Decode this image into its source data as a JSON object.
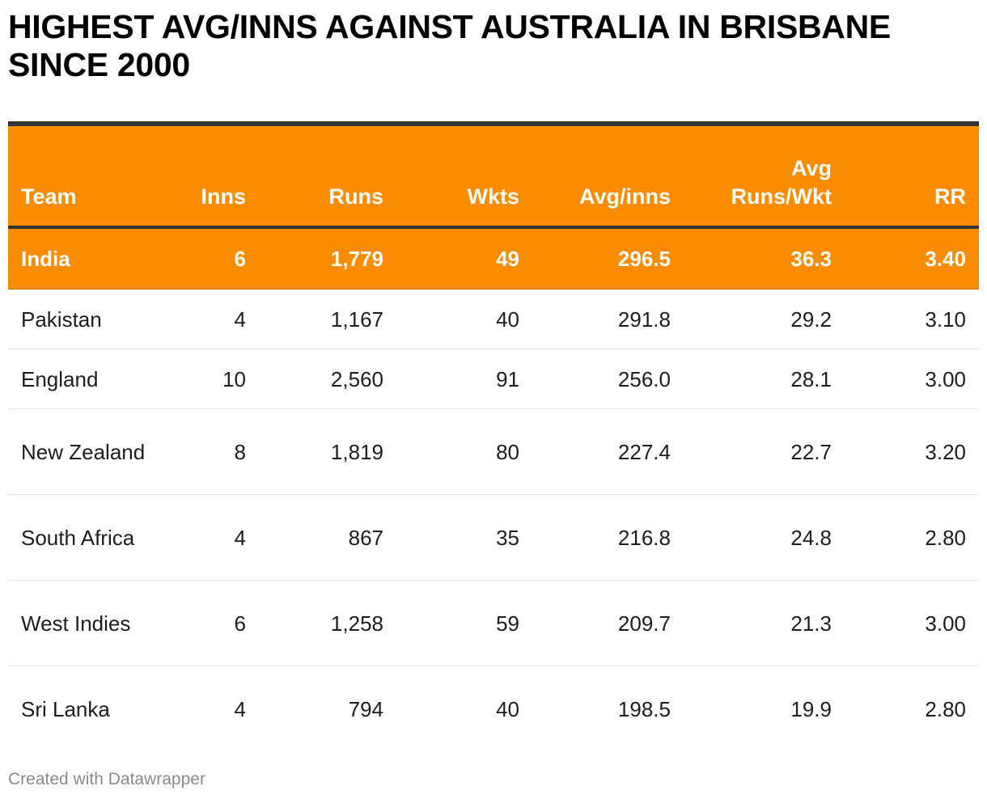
{
  "title": "HIGHEST AVG/INNS AGAINST AUSTRALIA IN BRISBANE SINCE 2000",
  "footer": "Created with Datawrapper",
  "colors": {
    "header_bg": "#fb8c00",
    "highlight_bg": "#fb8c00",
    "header_text": "#ffffff",
    "rule": "#333333"
  },
  "chart_data": {
    "type": "table",
    "title": "HIGHEST AVG/INNS AGAINST AUSTRALIA IN BRISBANE SINCE 2000",
    "columns": [
      "Team",
      "Inns",
      "Runs",
      "Wkts",
      "Avg/inns",
      "Avg Runs/Wkt",
      "RR"
    ],
    "rows": [
      {
        "team": "India",
        "inns": "6",
        "runs": "1,779",
        "wkts": "49",
        "avg_inns": "296.5",
        "avg_runs_wkt": "36.3",
        "rr": "3.40",
        "highlight": true
      },
      {
        "team": "Pakistan",
        "inns": "4",
        "runs": "1,167",
        "wkts": "40",
        "avg_inns": "291.8",
        "avg_runs_wkt": "29.2",
        "rr": "3.10"
      },
      {
        "team": "England",
        "inns": "10",
        "runs": "2,560",
        "wkts": "91",
        "avg_inns": "256.0",
        "avg_runs_wkt": "28.1",
        "rr": "3.00"
      },
      {
        "team": "New Zealand",
        "inns": "8",
        "runs": "1,819",
        "wkts": "80",
        "avg_inns": "227.4",
        "avg_runs_wkt": "22.7",
        "rr": "3.20"
      },
      {
        "team": "South Africa",
        "inns": "4",
        "runs": "867",
        "wkts": "35",
        "avg_inns": "216.8",
        "avg_runs_wkt": "24.8",
        "rr": "2.80"
      },
      {
        "team": "West Indies",
        "inns": "6",
        "runs": "1,258",
        "wkts": "59",
        "avg_inns": "209.7",
        "avg_runs_wkt": "21.3",
        "rr": "3.00"
      },
      {
        "team": "Sri Lanka",
        "inns": "4",
        "runs": "794",
        "wkts": "40",
        "avg_inns": "198.5",
        "avg_runs_wkt": "19.9",
        "rr": "2.80"
      }
    ]
  }
}
